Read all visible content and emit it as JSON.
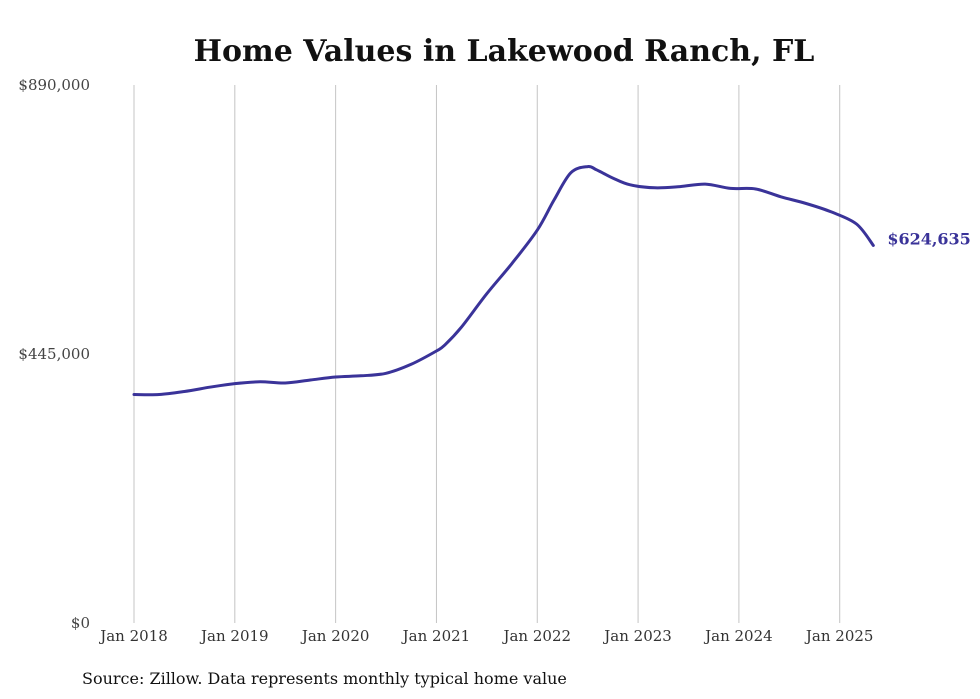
{
  "chart_data": {
    "type": "line",
    "title": "Home Values in Lakewood Ranch, FL",
    "xlabel": "",
    "ylabel": "",
    "ylim": [
      0,
      890000
    ],
    "y_ticks": [
      {
        "value": 0,
        "label": "$0"
      },
      {
        "value": 445000,
        "label": "$445,000"
      },
      {
        "value": 890000,
        "label": "$890,000"
      }
    ],
    "x_ticks": [
      {
        "value": 2018,
        "label": "Jan 2018"
      },
      {
        "value": 2019,
        "label": "Jan 2019"
      },
      {
        "value": 2020,
        "label": "Jan 2020"
      },
      {
        "value": 2021,
        "label": "Jan 2021"
      },
      {
        "value": 2022,
        "label": "Jan 2022"
      },
      {
        "value": 2023,
        "label": "Jan 2023"
      },
      {
        "value": 2024,
        "label": "Jan 2024"
      },
      {
        "value": 2025,
        "label": "Jan 2025"
      }
    ],
    "xlim": [
      2018,
      2025.35
    ],
    "grid": "vertical",
    "line_color": "#3a3399",
    "series": [
      {
        "x": [
          "2018-01",
          "2018-04",
          "2018-07",
          "2018-10",
          "2019-01",
          "2019-04",
          "2019-07",
          "2019-10",
          "2020-01",
          "2020-04",
          "2020-07",
          "2020-10",
          "2021-01",
          "2021-02",
          "2021-04",
          "2021-07",
          "2021-10",
          "2022-01",
          "2022-03",
          "2022-05",
          "2022-07",
          "2022-08",
          "2022-09",
          "2022-10",
          "2022-12",
          "2023-03",
          "2023-06",
          "2023-09",
          "2023-12",
          "2024-03",
          "2024-06",
          "2024-09",
          "2024-12",
          "2025-03",
          "2025-05"
        ],
        "values": [
          378000,
          378000,
          383000,
          390000,
          396000,
          399000,
          397000,
          402000,
          407000,
          409000,
          413000,
          428000,
          450000,
          460000,
          490000,
          545000,
          595000,
          650000,
          700000,
          745000,
          755000,
          750000,
          743000,
          736000,
          725000,
          720000,
          722000,
          726000,
          719000,
          718000,
          705000,
          694000,
          680000,
          660000,
          624635
        ]
      }
    ],
    "end_label": "$624,635",
    "source_note": "Source: Zillow. Data represents monthly typical home value"
  }
}
